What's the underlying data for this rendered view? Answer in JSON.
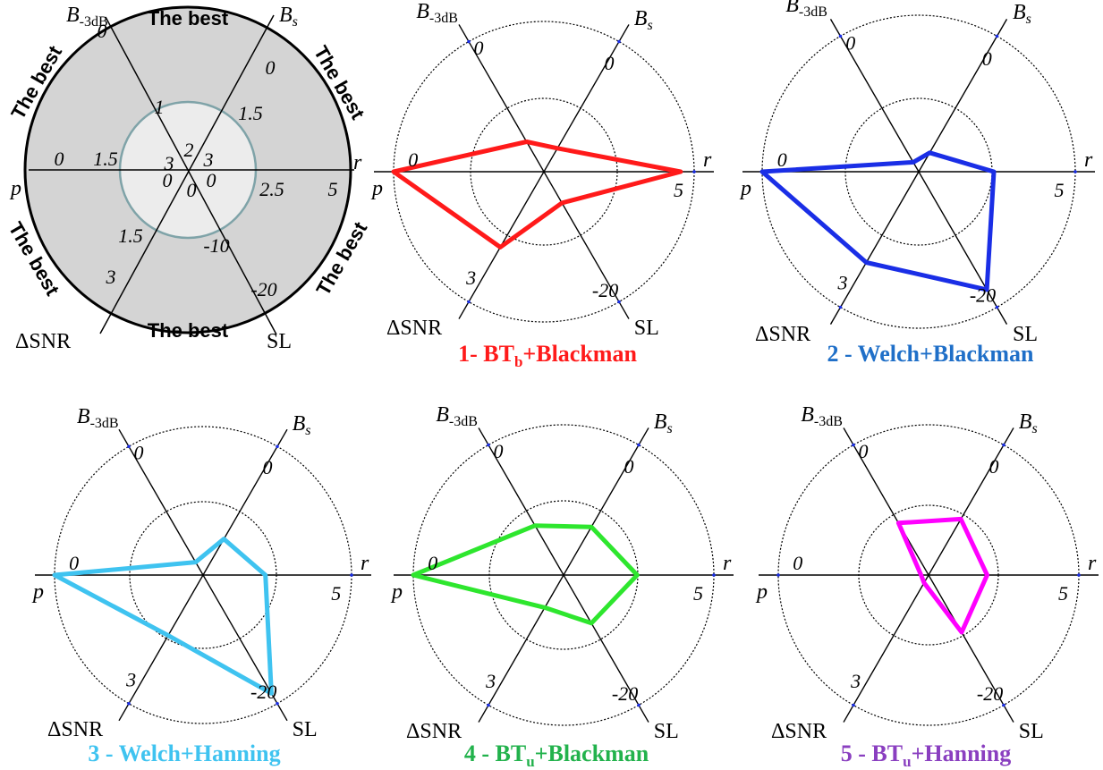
{
  "axes": {
    "bs": {
      "name": "B",
      "sub": "s"
    },
    "b3": {
      "name": "B",
      "sub": "-3dB"
    },
    "r": {
      "name": "r"
    },
    "p": {
      "name": "p"
    },
    "sl": {
      "name": "SL"
    },
    "dsnr": {
      "name": "ΔSNR"
    }
  },
  "reference": {
    "best_label": "The best",
    "ticks": {
      "b3_outer": "0",
      "b3_inner": "1",
      "b3_center": "2",
      "bs_outer": "0",
      "bs_inner": "1.5",
      "bs_center": "3",
      "p_outer": "0",
      "p_inner": "1.5",
      "p_center": "3",
      "r_outer": "5",
      "r_inner": "2.5",
      "r_center": "0",
      "sl_outer": "-20",
      "sl_inner": "-10",
      "sl_center": "0",
      "dsnr_outer": "3",
      "dsnr_inner": "1.5"
    },
    "colors": {
      "outer_fill": "#d4d4d4",
      "inner_fill": "#ececec",
      "inner_stroke": "#7fa3a8"
    }
  },
  "charts": [
    {
      "caption": "1- BT",
      "caption_sub": "b",
      "caption_tail": "+Blackman",
      "color": "#ff1a1a",
      "ticks": {
        "b3": "0",
        "bs": "0",
        "r": "5",
        "p": "0",
        "sl": "-20",
        "dsnr": "3"
      },
      "profile": {
        "bs": 0.18,
        "r": 0.91,
        "sl": 0.24,
        "dsnr": 0.58,
        "p": 1.0,
        "b3": 0.23
      }
    },
    {
      "caption": "2 - Welch+Blackman",
      "caption_sub": "",
      "caption_tail": "",
      "color": "#1a2ee6",
      "ticks": {
        "b3": "0",
        "bs": "0",
        "r": "5",
        "p": "0",
        "sl": "-20",
        "dsnr": "3"
      },
      "profile": {
        "bs": 0.14,
        "r": 0.48,
        "sl": 0.87,
        "dsnr": 0.67,
        "p": 1.0,
        "b3": 0.07
      }
    },
    {
      "caption": "3 - Welch+Hanning",
      "caption_sub": "",
      "caption_tail": "",
      "color": "#3fc3f0",
      "ticks": {
        "b3": "0",
        "bs": "0",
        "r": "5",
        "p": "0",
        "sl": "-20",
        "dsnr": "3"
      },
      "profile": {
        "bs": 0.28,
        "r": 0.42,
        "sl": 0.92,
        "dsnr": 0.47,
        "p": 1.0,
        "b3": 0.1
      }
    },
    {
      "caption": "4 - BT",
      "caption_sub": "u",
      "caption_tail": "+Blackman",
      "color": "#2ee62e",
      "ticks": {
        "b3": "0",
        "bs": "0",
        "r": "5",
        "p": "0",
        "sl": "-20",
        "dsnr": "3"
      },
      "profile": {
        "bs": 0.37,
        "r": 0.49,
        "sl": 0.37,
        "dsnr": 0.25,
        "p": 1.0,
        "b3": 0.38
      }
    },
    {
      "caption": "5 - BT",
      "caption_sub": "u",
      "caption_tail": "+Hanning",
      "color": "#ff00ff",
      "ticks": {
        "b3": "0",
        "bs": "0",
        "r": "5",
        "p": "0",
        "sl": "-20",
        "dsnr": "3"
      },
      "profile": {
        "bs": 0.43,
        "r": 0.39,
        "sl": 0.44,
        "dsnr": 0.06,
        "p": 0.05,
        "b3": 0.4
      }
    }
  ]
}
